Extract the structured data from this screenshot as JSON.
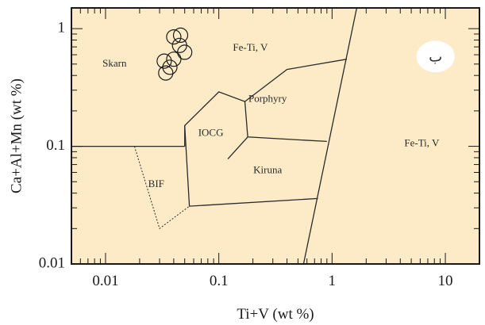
{
  "chart_data": {
    "type": "scatter",
    "title": "",
    "xlabel": "Ti+V (wt %)",
    "ylabel": "Ca+Al+Mn (wt %)",
    "xscale": "log",
    "yscale": "log",
    "xlim": [
      0.005,
      20
    ],
    "ylim": [
      0.01,
      1.5
    ],
    "x_ticks": [
      {
        "value": 0.01,
        "label": "0.01"
      },
      {
        "value": 0.1,
        "label": "0.1"
      },
      {
        "value": 1,
        "label": "1"
      },
      {
        "value": 10,
        "label": "10"
      }
    ],
    "y_ticks": [
      {
        "value": 0.01,
        "label": "0.01"
      },
      {
        "value": 0.1,
        "label": "0.1"
      },
      {
        "value": 1,
        "label": "1"
      }
    ],
    "grid": false,
    "legend": "none",
    "background_color": "#fdebc8",
    "region_labels": [
      {
        "text": "Skarn",
        "x": 0.012,
        "y": 0.5
      },
      {
        "text": "Fe-Ti, V",
        "x": 0.19,
        "y": 0.68
      },
      {
        "text": "Porphyry",
        "x": 0.27,
        "y": 0.25
      },
      {
        "text": "IOCG",
        "x": 0.085,
        "y": 0.128
      },
      {
        "text": "Kiruna",
        "x": 0.27,
        "y": 0.062
      },
      {
        "text": "Fe-Ti, V",
        "x": 6.2,
        "y": 0.105
      },
      {
        "text": "BIF",
        "x": 0.028,
        "y": 0.047
      }
    ],
    "points": [
      {
        "x": 0.04,
        "y": 0.85
      },
      {
        "x": 0.046,
        "y": 0.88
      },
      {
        "x": 0.045,
        "y": 0.72
      },
      {
        "x": 0.05,
        "y": 0.63
      },
      {
        "x": 0.033,
        "y": 0.53
      },
      {
        "x": 0.04,
        "y": 0.55
      },
      {
        "x": 0.037,
        "y": 0.47
      },
      {
        "x": 0.034,
        "y": 0.42
      }
    ],
    "annotation": {
      "text": "ب",
      "x": 8.2,
      "y": 0.58
    }
  }
}
